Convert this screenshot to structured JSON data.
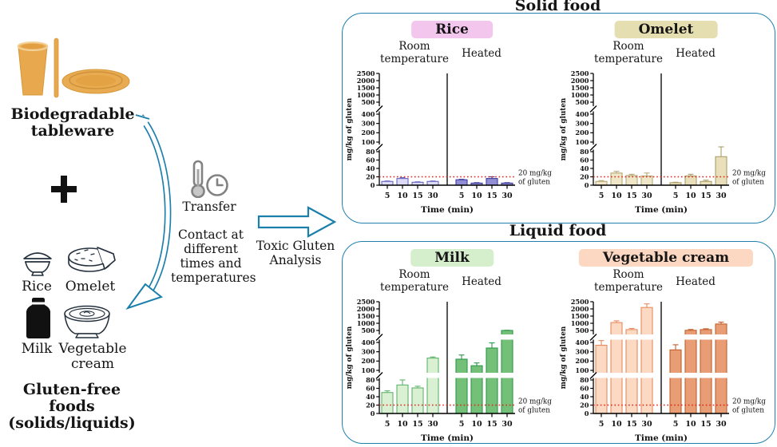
{
  "left": {
    "tableware_label": "Biodegradable tableware",
    "plus_sign": "+",
    "food_labels": {
      "rice": "Rice",
      "omelet": "Omelet",
      "milk": "Milk",
      "vegetable_cream": "Vegetable cream"
    },
    "gluten_free_label": "Gluten-free foods (solids/liquids)"
  },
  "middle": {
    "transfer_label": "Transfer",
    "contact_label": "Contact at different times and temperatures",
    "analysis_label": "Toxic Gluten Analysis"
  },
  "boxes": {
    "solid_title": "Solid food",
    "liquid_title": "Liquid food"
  },
  "colors": {
    "box_border": "#2180ad",
    "arrow_blue": "#1b7fab",
    "threshold_red": "#e32017",
    "tableware_tan": "#e8a94e"
  },
  "chart_data": [
    {
      "type": "bar",
      "title": "Rice",
      "panel": "Solid food",
      "categories": [
        "5",
        "10",
        "15",
        "30"
      ],
      "groups": [
        {
          "name": "Room temperature",
          "values": [
            9,
            16,
            7,
            9
          ],
          "errors": [
            1,
            2,
            1,
            1
          ]
        },
        {
          "name": "Heated",
          "values": [
            13,
            5,
            16,
            5
          ],
          "errors": [
            1,
            1,
            4,
            1
          ]
        }
      ],
      "xlabel": "Time (min)",
      "ylabel": "mg/kg of gluten",
      "threshold": 20,
      "threshold_label_lines": [
        "20 mg/kg",
        "of gluten"
      ],
      "y_segments": [
        [
          0,
          20,
          40,
          60,
          80
        ],
        [
          100,
          200,
          300,
          400
        ],
        [
          500,
          1000,
          1500,
          2000,
          2500
        ]
      ],
      "colors": {
        "chip": "#f3c6ee",
        "rt_fill": "#dcdaf4",
        "rt_edge": "#6b68c0",
        "heated_fill": "#918ed5",
        "heated_edge": "#403d9e"
      }
    },
    {
      "type": "bar",
      "title": "Omelet",
      "panel": "Solid food",
      "categories": [
        "5",
        "10",
        "15",
        "30"
      ],
      "groups": [
        {
          "name": "Room temperature",
          "values": [
            9,
            29,
            23,
            22
          ],
          "errors": [
            2,
            4,
            3,
            7
          ]
        },
        {
          "name": "Heated",
          "values": [
            6,
            22,
            9,
            68
          ],
          "errors": [
            1,
            4,
            3,
            25
          ]
        }
      ],
      "xlabel": "Time (min)",
      "ylabel": "mg/kg of gluten",
      "threshold": 20,
      "threshold_label_lines": [
        "20 mg/kg",
        "of gluten"
      ],
      "y_segments": [
        [
          0,
          20,
          40,
          60,
          80
        ],
        [
          100,
          200,
          300,
          400
        ],
        [
          500,
          1000,
          1500,
          2000,
          2500
        ]
      ],
      "colors": {
        "chip": "#e5deb0",
        "rt_fill": "#efe7c8",
        "rt_edge": "#b5aa78",
        "heated_fill": "#e9dfba",
        "heated_edge": "#ab9f6a"
      }
    },
    {
      "type": "bar",
      "title": "Milk",
      "panel": "Liquid food",
      "categories": [
        "5",
        "10",
        "15",
        "30"
      ],
      "groups": [
        {
          "name": "Room temperature",
          "values": [
            50,
            68,
            61,
            232
          ],
          "errors": [
            4,
            12,
            4,
            12
          ]
        },
        {
          "name": "Heated",
          "values": [
            220,
            150,
            340,
            500
          ],
          "errors": [
            45,
            30,
            55,
            15
          ]
        }
      ],
      "xlabel": "Time (min)",
      "ylabel": "mg/kg of gluten",
      "threshold": 20,
      "threshold_label_lines": [
        "20 mg/kg",
        "of gluten"
      ],
      "y_segments": [
        [
          0,
          20,
          40,
          60,
          80
        ],
        [
          100,
          200,
          300,
          400
        ],
        [
          500,
          1000,
          1500,
          2000,
          2500
        ]
      ],
      "colors": {
        "chip": "#d5eecb",
        "rt_fill": "#daf0d3",
        "rt_edge": "#5fb46b",
        "heated_fill": "#74c078",
        "heated_edge": "#2f9849"
      }
    },
    {
      "type": "bar",
      "title": "Vegetable cream",
      "panel": "Liquid food",
      "categories": [
        "5",
        "10",
        "15",
        "30"
      ],
      "groups": [
        {
          "name": "Room temperature",
          "values": [
            370,
            1050,
            560,
            2100
          ],
          "errors": [
            50,
            120,
            80,
            250
          ]
        },
        {
          "name": "Heated",
          "values": [
            320,
            510,
            560,
            950
          ],
          "errors": [
            55,
            60,
            60,
            130
          ]
        }
      ],
      "xlabel": "Time (min)",
      "ylabel": "mg/kg of gluten",
      "threshold": 20,
      "threshold_label_lines": [
        "20 mg/kg",
        "of gluten"
      ],
      "y_segments": [
        [
          0,
          20,
          40,
          60,
          80
        ],
        [
          100,
          200,
          300,
          400
        ],
        [
          500,
          1000,
          1500,
          2000,
          2500
        ]
      ],
      "colors": {
        "chip": "#fcd8c2",
        "rt_fill": "#fcd9c3",
        "rt_edge": "#e78a5e",
        "heated_fill": "#e89d74",
        "heated_edge": "#c2602f"
      }
    }
  ]
}
